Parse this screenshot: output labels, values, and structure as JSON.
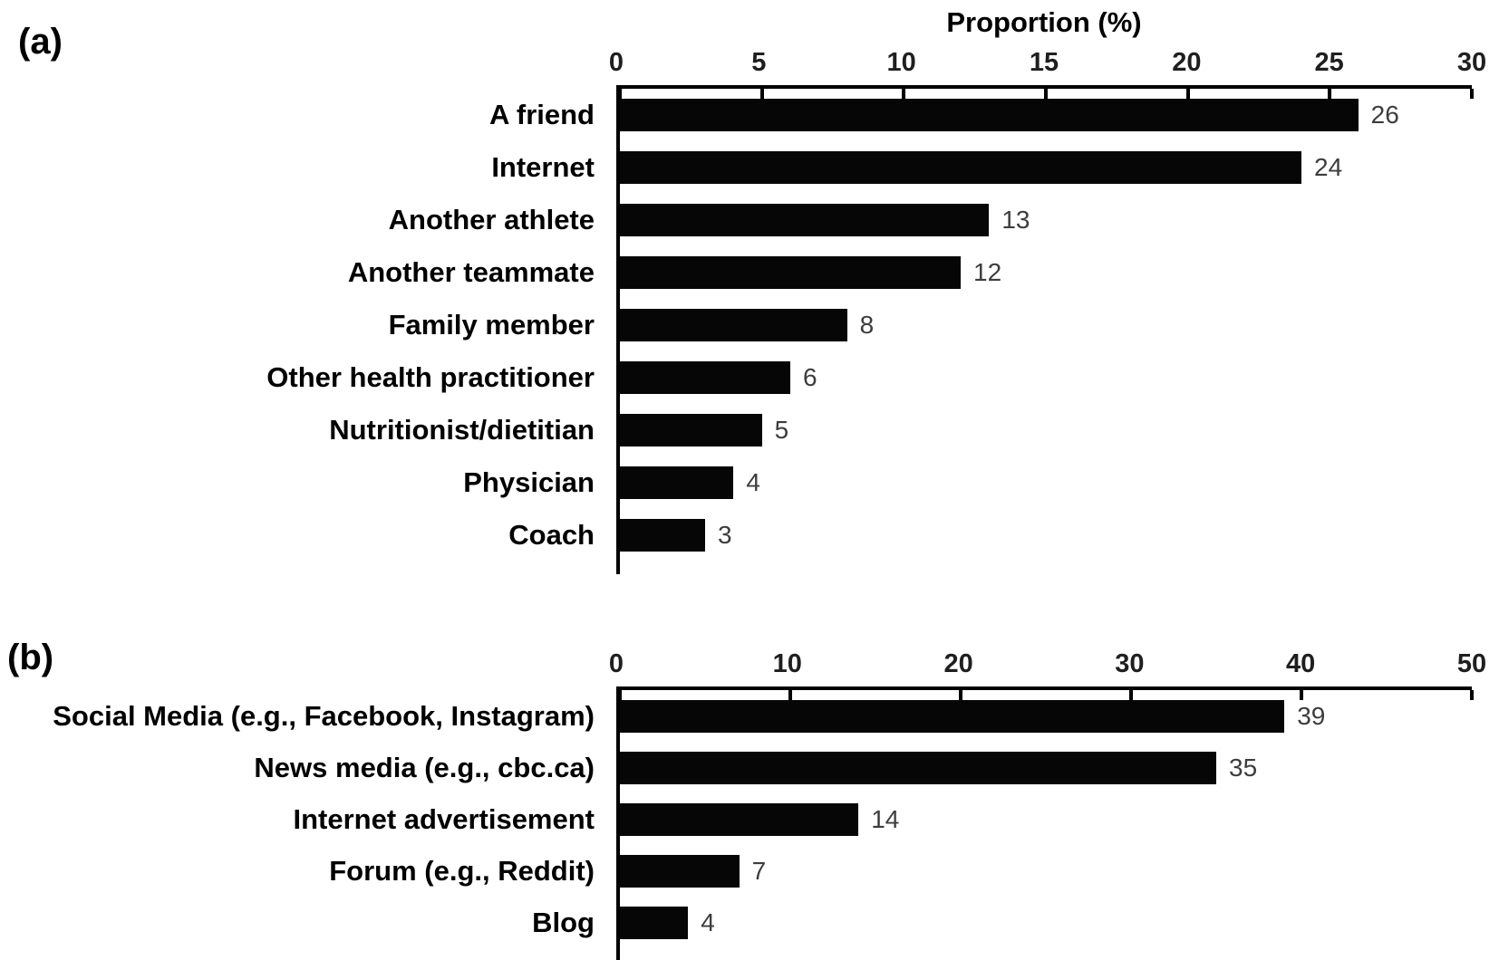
{
  "figure": {
    "background": "#ffffff"
  },
  "colors": {
    "bar": "#060606",
    "axis_line": "#000000",
    "value_label": "#3d3d3d",
    "tick_label": "#1f1f1f",
    "category_label": "#000000"
  },
  "chart_data": [
    {
      "type": "bar",
      "orientation": "horizontal",
      "panel_label": "(a)",
      "title": "Proportion (%)",
      "categories": [
        "A friend",
        "Internet",
        "Another athlete",
        "Another teammate",
        "Family member",
        "Other health practitioner",
        "Nutritionist/dietitian",
        "Physician",
        "Coach"
      ],
      "values": [
        26,
        24,
        13,
        12,
        8,
        6,
        5,
        4,
        3
      ],
      "data_labels": [
        26,
        24,
        13,
        12,
        8,
        6,
        5,
        4,
        3
      ],
      "xlim": [
        0,
        30
      ],
      "xticks": [
        0,
        5,
        10,
        15,
        20,
        25,
        30
      ],
      "axis_position": "top",
      "grid": false,
      "legend": false,
      "bar_color": "#060606"
    },
    {
      "type": "bar",
      "orientation": "horizontal",
      "panel_label": "(b)",
      "title": "",
      "categories": [
        "Social Media (e.g., Facebook, Instagram)",
        "News media (e.g., cbc.ca)",
        "Internet advertisement",
        "Forum (e.g., Reddit)",
        "Blog"
      ],
      "values": [
        39,
        35,
        14,
        7,
        4
      ],
      "data_labels": [
        39,
        35,
        14,
        7,
        4
      ],
      "xlim": [
        0,
        50
      ],
      "xticks": [
        0,
        10,
        20,
        30,
        40,
        50
      ],
      "axis_position": "top",
      "grid": false,
      "legend": false,
      "bar_color": "#060606"
    }
  ]
}
